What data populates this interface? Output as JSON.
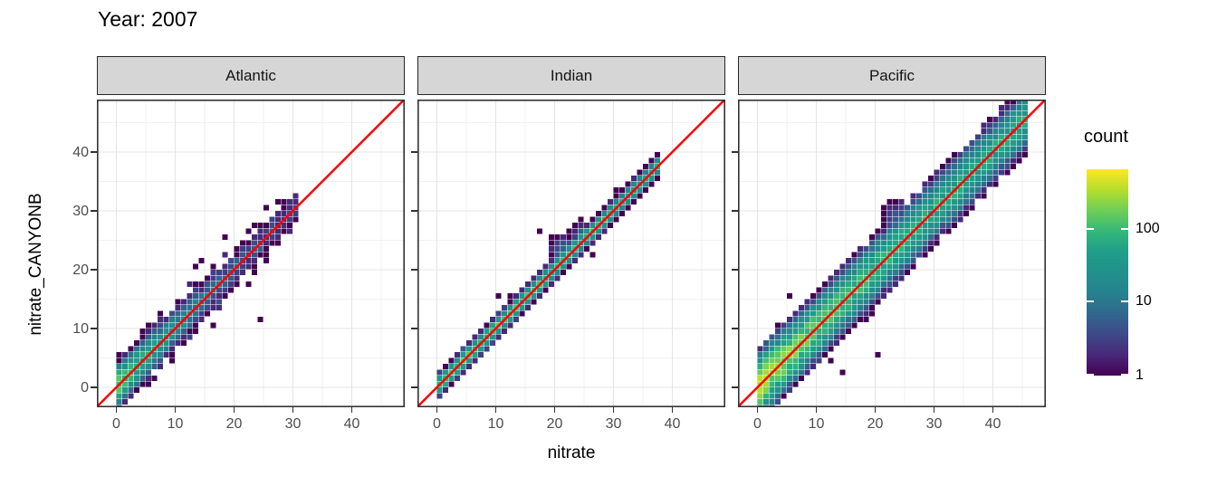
{
  "title": "Year: 2007",
  "chart_data": {
    "type": "heatmap",
    "subtype": "faceted 2D-binned scatter (geom_bin2d) with identity reference line",
    "title": "Year: 2007",
    "xlabel": "nitrate",
    "ylabel": "nitrate_CANYONB",
    "x_ticks": [
      0,
      10,
      20,
      30,
      40
    ],
    "y_ticks": [
      0,
      10,
      20,
      30,
      40
    ],
    "x_minor_ticks": [
      5,
      15,
      25,
      35,
      45
    ],
    "y_minor_ticks": [
      5,
      15,
      25,
      35,
      45
    ],
    "xlim": [
      -3.3,
      49
    ],
    "ylim": [
      -3.4,
      48.9
    ],
    "grid": "major+minor",
    "bin_size": 1,
    "refline": {
      "type": "identity y=x",
      "color": "#ff0000"
    },
    "legend": {
      "title": "count",
      "position": "right",
      "scale": "log10",
      "tick_labels": [
        "100",
        "10",
        "1"
      ],
      "tick_values": [
        100,
        10,
        1
      ],
      "domain": [
        1,
        650
      ]
    },
    "palette_viridis": [
      "#440154",
      "#482878",
      "#3e4989",
      "#31688e",
      "#26828e",
      "#21918c",
      "#1f9e89",
      "#35b779",
      "#6ece58",
      "#b5de2b",
      "#fde725"
    ],
    "facets": [
      {
        "label": "Atlantic",
        "data_min": -2,
        "data_max": 31,
        "peak_count": 150,
        "count_decay": 5,
        "base_count": 3,
        "band_sd": 1.4,
        "scatter_n": 60,
        "scatter_w": 5,
        "scatter_xmax": 27,
        "seed": 11,
        "clusters": [],
        "outliers": [
          [
            24.5,
            11
          ],
          [
            14,
            21
          ],
          [
            13,
            20.5
          ],
          [
            20,
            23
          ],
          [
            16.5,
            10.5
          ],
          [
            7,
            12
          ],
          [
            18,
            25
          ],
          [
            22,
            17
          ],
          [
            9,
            4
          ],
          [
            12,
            17.5
          ]
        ]
      },
      {
        "label": "Indian",
        "data_min": -2,
        "data_max": 38,
        "peak_count": 120,
        "count_decay": 30,
        "base_count": 20,
        "band_sd": 0.7,
        "scatter_n": 25,
        "scatter_w": 2.5,
        "scatter_xmax": 36,
        "seed": 22,
        "clusters": [
          {
            "x": 21,
            "y": 23,
            "r": 2,
            "count": 5
          },
          {
            "x": 24,
            "y": 26,
            "r": 1.5,
            "count": 4
          }
        ],
        "outliers": [
          [
            17,
            26.5
          ],
          [
            10,
            15
          ],
          [
            26,
            22.5
          ]
        ]
      },
      {
        "label": "Pacific",
        "data_min": -2,
        "data_max": 46,
        "peak_count": 260,
        "count_decay": 9,
        "base_count": 55,
        "band_sd": 2.0,
        "scatter_n": 90,
        "scatter_w": 7,
        "scatter_xmax": 44,
        "seed": 33,
        "clusters": [
          {
            "x": 23,
            "y": 29,
            "r": 2,
            "count": 3
          },
          {
            "x": 34,
            "y": 38.5,
            "r": 1.5,
            "count": 2
          }
        ],
        "outliers": [
          [
            5,
            15
          ],
          [
            8,
            13
          ],
          [
            3,
            10
          ],
          [
            6,
            10.5
          ],
          [
            20,
            5.5
          ],
          [
            14,
            2.5
          ],
          [
            22,
            29
          ],
          [
            24,
            30
          ],
          [
            21,
            27
          ],
          [
            33,
            38
          ],
          [
            35,
            39
          ],
          [
            28,
            33
          ],
          [
            2,
            8
          ],
          [
            17,
            23.5
          ],
          [
            12,
            4
          ],
          [
            19,
            12
          ]
        ]
      }
    ]
  },
  "colors": {
    "refline": "#ff0000",
    "strip_fill": "#d6d6d6",
    "strip_border": "#262626",
    "panel_border": "#333333",
    "grid_major": "#e4e4e4",
    "grid_minor": "#f1f1f1",
    "tick": "#333333",
    "tick_label": "#4d4d4d",
    "text": "#000000",
    "background": "#ffffff",
    "viridis_low": "#440154",
    "viridis_high": "#fde725"
  }
}
